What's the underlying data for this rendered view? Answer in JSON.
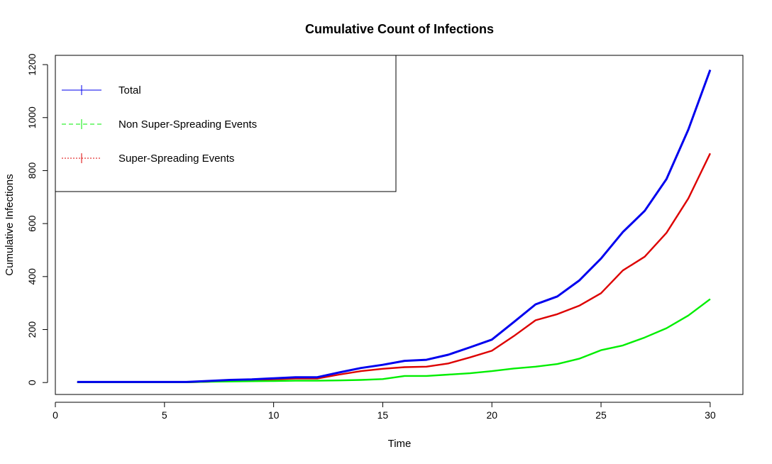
{
  "chart_data": {
    "type": "line",
    "title": "Cumulative Count of Infections",
    "xlabel": "Time",
    "ylabel": "Cumulative Infections",
    "xlim": [
      0,
      31.5
    ],
    "ylim": [
      -45,
      1235
    ],
    "xticks": [
      0,
      5,
      10,
      15,
      20,
      25,
      30
    ],
    "yticks": [
      0,
      200,
      400,
      600,
      800,
      1000,
      1200
    ],
    "grid": false,
    "legend_position": "top-left",
    "x": [
      1,
      2,
      3,
      4,
      5,
      6,
      7,
      8,
      9,
      10,
      11,
      12,
      13,
      14,
      15,
      16,
      17,
      18,
      19,
      20,
      21,
      22,
      23,
      24,
      25,
      26,
      27,
      28,
      29,
      30
    ],
    "series": [
      {
        "name": "Total",
        "color": "#0000EE",
        "line_style": "solid",
        "values": [
          2,
          2,
          2,
          2,
          2,
          2,
          6,
          10,
          12,
          16,
          20,
          20,
          38,
          55,
          67,
          82,
          86,
          105,
          133,
          162,
          228,
          295,
          325,
          385,
          468,
          568,
          648,
          768,
          955,
          1180
        ]
      },
      {
        "name": "Non Super-Spreading Events",
        "color": "#00EE00",
        "line_style": "dashed",
        "values": [
          1,
          1,
          1,
          1,
          1,
          1,
          3,
          4,
          5,
          6,
          7,
          7,
          8,
          10,
          13,
          25,
          25,
          30,
          35,
          43,
          53,
          60,
          70,
          90,
          122,
          140,
          170,
          205,
          253,
          315
        ]
      },
      {
        "name": "Super-Spreading Events",
        "color": "#DD0000",
        "line_style": "dotted",
        "values": [
          1,
          1,
          1,
          1,
          1,
          1,
          3,
          8,
          8,
          12,
          15,
          15,
          30,
          43,
          52,
          58,
          60,
          72,
          95,
          120,
          175,
          235,
          258,
          290,
          337,
          423,
          475,
          565,
          695,
          865
        ]
      }
    ]
  }
}
